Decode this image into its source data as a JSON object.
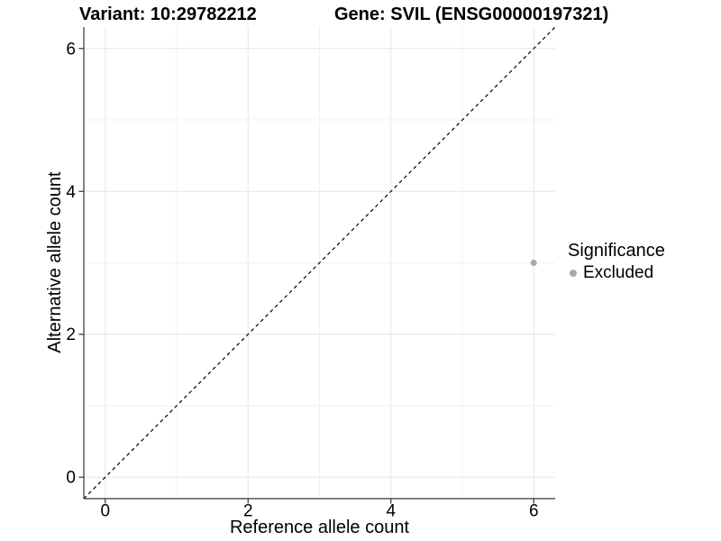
{
  "chart_data": {
    "type": "scatter",
    "title_left": "Variant: 10:29782212",
    "title_right": "Gene: SVIL (ENSG00000197321)",
    "xlabel": "Reference allele count",
    "ylabel": "Alternative allele count",
    "xlim": [
      -0.3,
      6.3
    ],
    "ylim": [
      -0.3,
      6.3
    ],
    "x_ticks": [
      0,
      2,
      4,
      6
    ],
    "y_ticks": [
      0,
      2,
      4,
      6
    ],
    "grid": {
      "on": true,
      "step": 1,
      "major_color": "#e6e6e6",
      "minor_color": "#f0f0f0"
    },
    "axis_color": "#333333",
    "tick_label_color": "#000000",
    "background_color": "#ffffff",
    "identity_line": {
      "style": "dashed",
      "color": "#000000",
      "from": [
        -0.3,
        -0.3
      ],
      "to": [
        6.3,
        6.3
      ]
    },
    "series": [
      {
        "name": "Excluded",
        "color": "#aaaaaa",
        "points": [
          {
            "x": 6,
            "y": 3
          }
        ]
      }
    ],
    "legend": {
      "title": "Significance",
      "position": "right",
      "entries": [
        {
          "label": "Excluded",
          "color": "#aaaaaa"
        }
      ]
    }
  }
}
